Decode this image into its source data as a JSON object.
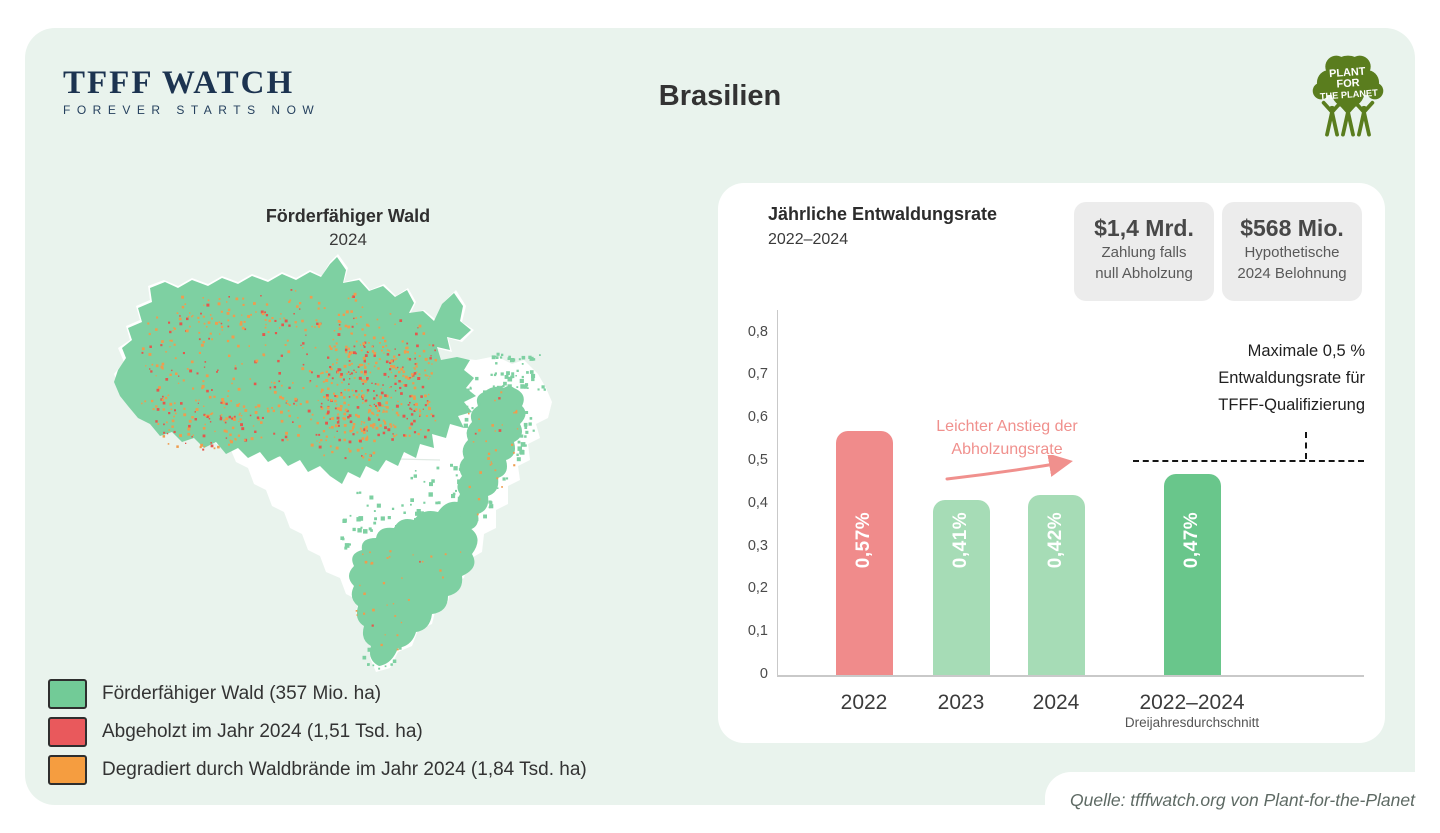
{
  "header": {
    "brand": {
      "title": "TFFF WATCH",
      "tagline": "FOREVER STARTS NOW"
    },
    "page_title": "Brasilien",
    "partner_logo_lines": [
      "PLANT",
      "FOR",
      "THE PLANET"
    ]
  },
  "map": {
    "title": "Förderfähiger Wald",
    "subtitle": "2024",
    "legend": [
      {
        "label": "Förderfähiger Wald (357 Mio. ha)",
        "color": "#72cb97"
      },
      {
        "label": "Abgeholzt im Jahr 2024 (1,51 Tsd. ha)",
        "color": "#e9595c"
      },
      {
        "label": "Degradiert durch Waldbrände im Jahr 2024 (1,84 Tsd. ha)",
        "color": "#f59d40"
      }
    ]
  },
  "stats": [
    {
      "value": "$1,4 Mrd.",
      "lines": [
        "Zahlung falls",
        "null Abholzung"
      ]
    },
    {
      "value": "$568 Mio.",
      "lines": [
        "Hypothetische",
        "2024 Belohnung"
      ]
    }
  ],
  "chart_data": {
    "type": "bar",
    "title": "Jährliche Entwaldungsrate",
    "subtitle": "2022–2024",
    "categories": [
      "2022",
      "2023",
      "2024",
      "2022–2024"
    ],
    "category_sublabels": [
      "",
      "",
      "",
      "Dreijahresdurchschnitt"
    ],
    "values": [
      0.57,
      0.41,
      0.42,
      0.47
    ],
    "value_labels": [
      "0,57%",
      "0,41%",
      "0,42%",
      "0,47%"
    ],
    "bar_colors": [
      "#f08b8b",
      "#a6dcb6",
      "#a6dcb6",
      "#69c68b"
    ],
    "ylim": [
      0,
      0.8
    ],
    "ytick_values": [
      0,
      0.1,
      0.2,
      0.3,
      0.4,
      0.5,
      0.6,
      0.7,
      0.8
    ],
    "ytick_labels": [
      "0",
      "0,1",
      "0,2",
      "0,3",
      "0,4",
      "0,5",
      "0,6",
      "0,7",
      "0,8"
    ],
    "grid": false,
    "legend_position": "none",
    "threshold": {
      "value": 0.5,
      "label_lines": [
        "Maximale 0,5 %",
        "Entwaldungsrate für",
        "TFFF-Qualifizierung"
      ]
    },
    "annotation": {
      "lines": [
        "Leichter Anstieg der",
        "Abholzungsrate"
      ],
      "color": "#f0908d"
    }
  },
  "source": {
    "text": "Quelle: tfffwatch.org von Plant-for-the-Planet"
  },
  "colors": {
    "card_bg": "#e9f3ed",
    "panel_bg": "#ffffff",
    "statbox_bg": "#ececec",
    "forest_green": "#7ed0a2",
    "fire_orange": "#ef9c4e",
    "deforest_red": "#e4574d",
    "brand_navy": "#1c3350",
    "logo_olive": "#5a7d1e",
    "axis_gray": "#c9c9c9"
  }
}
